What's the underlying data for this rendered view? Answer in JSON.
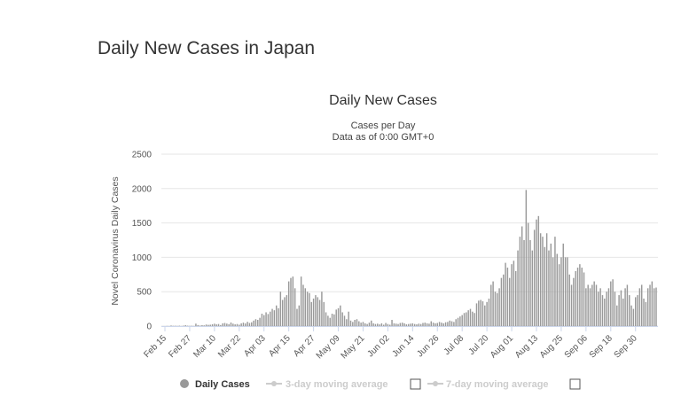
{
  "page": {
    "title": "Daily New Cases in Japan"
  },
  "chart_data": {
    "type": "bar",
    "title": "Daily New Cases",
    "subtitle_lines": [
      "Cases per Day",
      "Data as of 0:00 GMT+0"
    ],
    "xlabel": "",
    "ylabel": "Novel Coronavirus Daily Cases",
    "ylim": [
      0,
      2500
    ],
    "yticks": [
      0,
      500,
      1000,
      1500,
      2000,
      2500
    ],
    "grid": true,
    "x_tick_labels": [
      "Feb 15",
      "Feb 27",
      "Mar 10",
      "Mar 22",
      "Apr 03",
      "Apr 15",
      "Apr 27",
      "May 09",
      "May 21",
      "Jun 02",
      "Jun 14",
      "Jun 26",
      "Jul 08",
      "Jul 20",
      "Aug 01",
      "Aug 13",
      "Aug 25",
      "Sep 06",
      "Sep 18",
      "Sep 30"
    ],
    "x_start": "Feb 15",
    "series": [
      {
        "name": "Daily Cases",
        "color": "#999999",
        "values": [
          0,
          2,
          1,
          8,
          3,
          4,
          2,
          5,
          1,
          6,
          12,
          5,
          3,
          4,
          2,
          35,
          15,
          8,
          14,
          10,
          22,
          18,
          20,
          26,
          34,
          25,
          30,
          15,
          40,
          45,
          36,
          28,
          52,
          35,
          25,
          30,
          20,
          40,
          50,
          38,
          62,
          45,
          55,
          80,
          100,
          90,
          120,
          180,
          160,
          200,
          175,
          210,
          250,
          230,
          300,
          260,
          500,
          380,
          420,
          450,
          650,
          700,
          720,
          550,
          250,
          300,
          720,
          600,
          550,
          500,
          480,
          350,
          400,
          450,
          420,
          380,
          500,
          350,
          200,
          150,
          120,
          180,
          170,
          240,
          260,
          300,
          200,
          150,
          100,
          210,
          80,
          60,
          90,
          100,
          70,
          50,
          60,
          40,
          30,
          50,
          80,
          40,
          30,
          35,
          25,
          40,
          20,
          45,
          30,
          20,
          90,
          40,
          35,
          30,
          45,
          50,
          40,
          25,
          30,
          35,
          40,
          30,
          25,
          35,
          30,
          45,
          50,
          40,
          35,
          70,
          50,
          40,
          45,
          60,
          50,
          40,
          55,
          60,
          80,
          70,
          60,
          100,
          120,
          140,
          160,
          190,
          200,
          230,
          250,
          210,
          190,
          330,
          370,
          380,
          360,
          300,
          350,
          400,
          600,
          650,
          500,
          480,
          550,
          700,
          750,
          920,
          850,
          700,
          900,
          950,
          800,
          1100,
          1300,
          1450,
          1250,
          1980,
          1500,
          1250,
          1100,
          1400,
          1550,
          1600,
          1350,
          1300,
          1150,
          1350,
          1100,
          1200,
          1000,
          1300,
          1050,
          900,
          1000,
          1200,
          1000,
          1000,
          750,
          600,
          700,
          800,
          850,
          900,
          850,
          780,
          550,
          600,
          550,
          600,
          650,
          600,
          500,
          550,
          450,
          400,
          500,
          550,
          650,
          680,
          500,
          300,
          450,
          520,
          400,
          550,
          600,
          450,
          300,
          250,
          420,
          450,
          550,
          600,
          400,
          350,
          550,
          600,
          650,
          550,
          560
        ]
      },
      {
        "name": "3-day moving average",
        "color": "#cccccc",
        "visible": false
      },
      {
        "name": "7-day moving average",
        "color": "#cccccc",
        "visible": false
      }
    ],
    "legend": {
      "placement": "bottom",
      "items": [
        "Daily Cases",
        "3-day moving average",
        "7-day moving average"
      ]
    }
  }
}
